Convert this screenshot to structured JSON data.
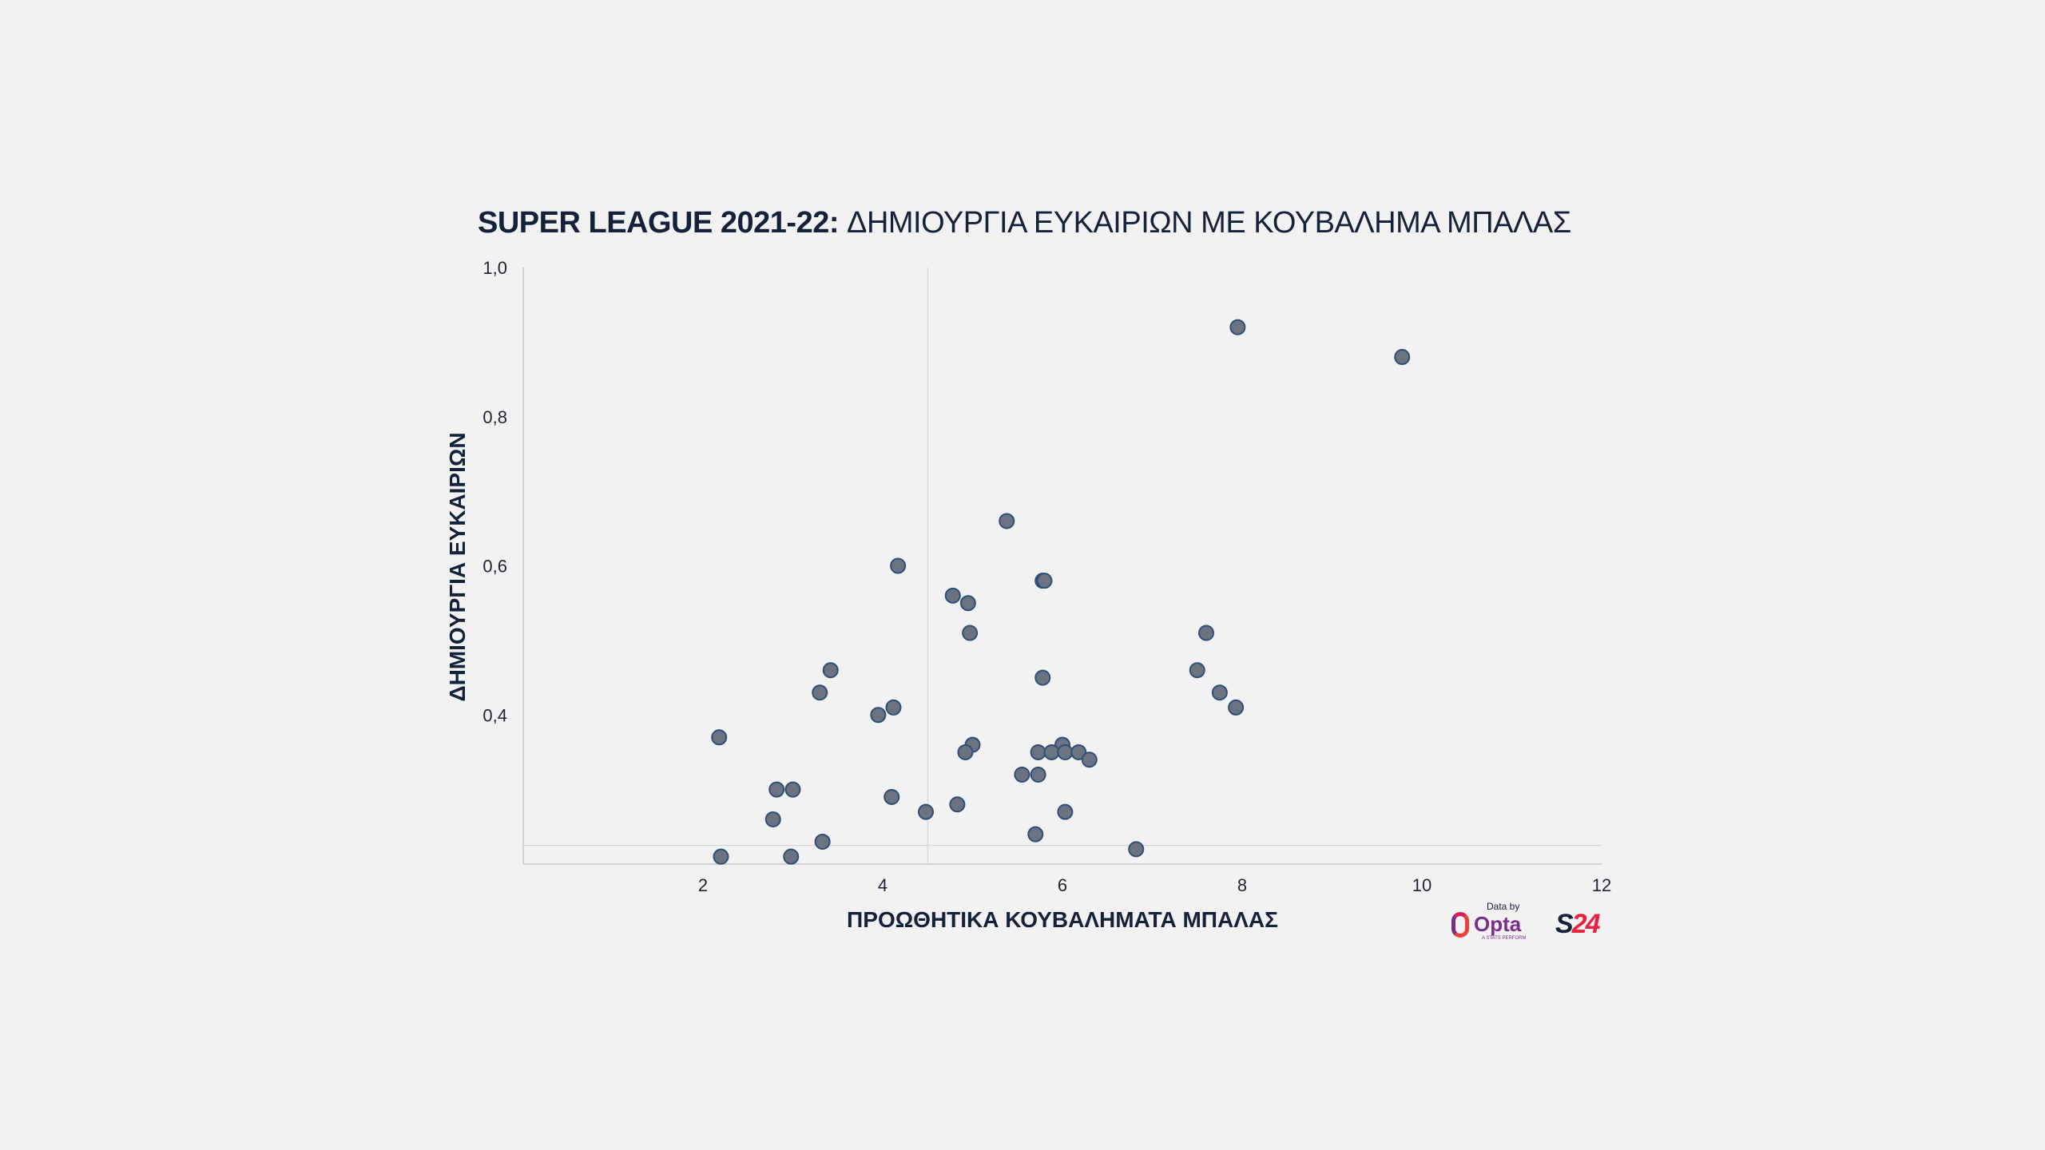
{
  "title": {
    "bold": "SUPER LEAGUE 2021-22:",
    "rest": " ΔΗΜΙΟΥΡΓΙΑ ΕΥΚΑΙΡΙΩΝ ΜΕ ΚΟΥΒΑΛΗΜΑ ΜΠΑΛΑΣ"
  },
  "logos": {
    "data_by": "Data by",
    "opta": "Opta",
    "opta_sub": "A STATS PERFORM",
    "s24_s": "S",
    "s24_num": "24"
  },
  "chart_data": {
    "type": "scatter",
    "title": "SUPER LEAGUE 2021-22: ΔΗΜΙΟΥΡΓΙΑ ΕΥΚΑΙΡΙΩΝ ΜΕ ΚΟΥΒΑΛΗΜΑ ΜΠΑΛΑΣ",
    "xlabel": "ΠΡΟΩΘΗΤΙΚΑ ΚΟΥΒΑΛΗΜΑΤΑ ΜΠΑΛΑΣ",
    "ylabel": "ΔΗΜΙΟΥΡΓΙΑ ΕΥΚΑΙΡΙΩΝ",
    "xlim": [
      0,
      12
    ],
    "ylim": [
      0.2,
      1.0
    ],
    "x_ticks": [
      "2",
      "4",
      "6",
      "8",
      "10",
      "12"
    ],
    "y_ticks": [
      "0,4",
      "0,6",
      "0,8",
      "1,0"
    ],
    "reference_lines": {
      "x": 4.5,
      "y": 0.225
    },
    "grid": false,
    "point_color": "#6b7280",
    "point_edge_color": "#2e4f7a",
    "points": [
      {
        "x": 7.95,
        "y": 0.92
      },
      {
        "x": 9.78,
        "y": 0.88
      },
      {
        "x": 5.38,
        "y": 0.66
      },
      {
        "x": 4.17,
        "y": 0.6
      },
      {
        "x": 5.78,
        "y": 0.58
      },
      {
        "x": 5.8,
        "y": 0.58
      },
      {
        "x": 4.78,
        "y": 0.56
      },
      {
        "x": 4.95,
        "y": 0.55
      },
      {
        "x": 4.97,
        "y": 0.51
      },
      {
        "x": 7.6,
        "y": 0.51
      },
      {
        "x": 3.42,
        "y": 0.46
      },
      {
        "x": 7.5,
        "y": 0.46
      },
      {
        "x": 5.78,
        "y": 0.45
      },
      {
        "x": 3.3,
        "y": 0.43
      },
      {
        "x": 7.75,
        "y": 0.43
      },
      {
        "x": 4.12,
        "y": 0.41
      },
      {
        "x": 7.93,
        "y": 0.41
      },
      {
        "x": 3.95,
        "y": 0.4
      },
      {
        "x": 2.18,
        "y": 0.37
      },
      {
        "x": 5.0,
        "y": 0.36
      },
      {
        "x": 6.0,
        "y": 0.36
      },
      {
        "x": 4.92,
        "y": 0.35
      },
      {
        "x": 5.73,
        "y": 0.35
      },
      {
        "x": 5.88,
        "y": 0.35
      },
      {
        "x": 6.03,
        "y": 0.35
      },
      {
        "x": 6.18,
        "y": 0.35
      },
      {
        "x": 6.3,
        "y": 0.34
      },
      {
        "x": 5.55,
        "y": 0.32
      },
      {
        "x": 5.73,
        "y": 0.32
      },
      {
        "x": 2.82,
        "y": 0.3
      },
      {
        "x": 3.0,
        "y": 0.3
      },
      {
        "x": 4.1,
        "y": 0.29
      },
      {
        "x": 4.83,
        "y": 0.28
      },
      {
        "x": 4.48,
        "y": 0.27
      },
      {
        "x": 6.03,
        "y": 0.27
      },
      {
        "x": 2.78,
        "y": 0.26
      },
      {
        "x": 5.7,
        "y": 0.24
      },
      {
        "x": 3.33,
        "y": 0.23
      },
      {
        "x": 6.82,
        "y": 0.22
      },
      {
        "x": 2.2,
        "y": 0.21
      },
      {
        "x": 2.98,
        "y": 0.21
      }
    ]
  }
}
